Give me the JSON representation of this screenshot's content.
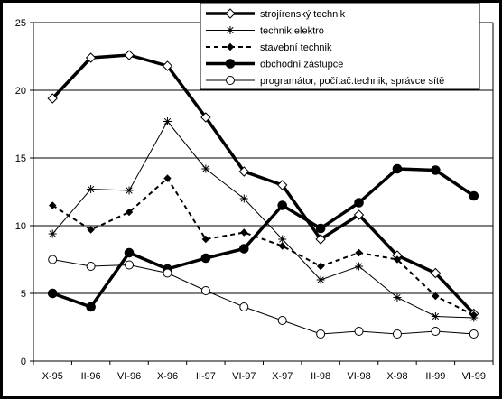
{
  "chart_data": {
    "type": "line",
    "categories": [
      "X-95",
      "II-96",
      "VI-96",
      "X-96",
      "II-97",
      "VI-97",
      "X-97",
      "II-98",
      "VI-98",
      "X-98",
      "II-99",
      "VI-99"
    ],
    "ylim": [
      0,
      25
    ],
    "yticks": [
      0,
      5,
      10,
      15,
      20,
      25
    ],
    "grid": true,
    "legend_position": "top-right",
    "series": [
      {
        "name": "strojírenský technik",
        "marker": "diamond-open",
        "line": "thick",
        "values": [
          19.4,
          22.4,
          22.6,
          21.8,
          18.0,
          14.0,
          13.0,
          9.0,
          10.8,
          7.8,
          6.5,
          3.5
        ]
      },
      {
        "name": "technik elektro",
        "marker": "asterisk",
        "line": "thin",
        "values": [
          9.4,
          12.7,
          12.6,
          17.7,
          14.2,
          12.0,
          9.0,
          6.0,
          7.0,
          4.7,
          3.3,
          3.2
        ]
      },
      {
        "name": "stavební technik",
        "marker": "diamond-filled",
        "line": "dashed",
        "values": [
          11.5,
          9.7,
          11.0,
          13.5,
          9.0,
          9.5,
          8.5,
          7.0,
          8.0,
          7.5,
          4.8,
          3.4
        ]
      },
      {
        "name": "obchodní zástupce",
        "marker": "circle-filled",
        "line": "thick",
        "values": [
          5.0,
          4.0,
          8.0,
          6.8,
          7.6,
          8.3,
          11.5,
          9.8,
          11.7,
          14.2,
          14.1,
          12.2
        ]
      },
      {
        "name": "programátor, počítač.technik, správce sítě",
        "marker": "circle-open",
        "line": "thin",
        "values": [
          7.5,
          7.0,
          7.1,
          6.5,
          5.2,
          4.0,
          3.0,
          2.0,
          2.2,
          2.0,
          2.2,
          2.0
        ]
      }
    ]
  }
}
